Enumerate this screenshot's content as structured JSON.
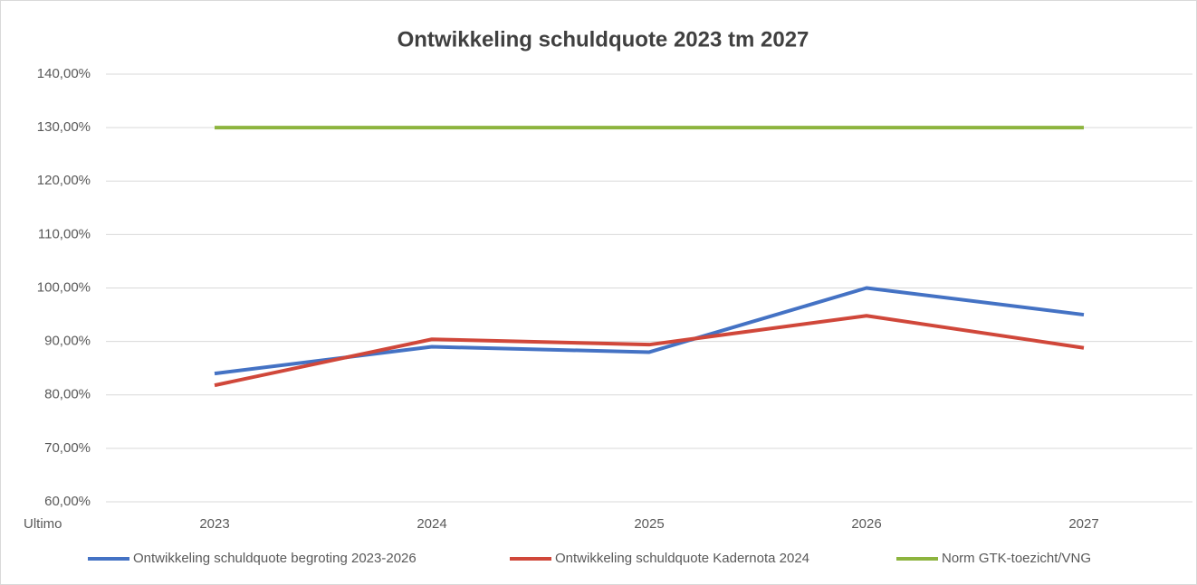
{
  "chart_data": {
    "type": "line",
    "title": "Ontwikkeling schuldquote 2023 tm 2027",
    "xlabel": "Ultimo",
    "categories": [
      "2023",
      "2024",
      "2025",
      "2026",
      "2027"
    ],
    "series": [
      {
        "name": "Ontwikkeling schuldquote begroting 2023-2026",
        "color": "#4472c4",
        "values": [
          84,
          89,
          88,
          100,
          95
        ]
      },
      {
        "name": "Ontwikkeling schuldquote Kadernota 2024",
        "color": "#d0473a",
        "values": [
          81.8,
          90.4,
          89.4,
          94.8,
          88.8
        ]
      },
      {
        "name": "Norm GTK-toezicht/VNG",
        "color": "#8db43e",
        "values": [
          130,
          130,
          130,
          130,
          130
        ]
      }
    ],
    "ylim": [
      60,
      140
    ],
    "yticks": [
      {
        "value": 60,
        "label": "60,00%"
      },
      {
        "value": 70,
        "label": "70,00%"
      },
      {
        "value": 80,
        "label": "80,00%"
      },
      {
        "value": 90,
        "label": "90,00%"
      },
      {
        "value": 100,
        "label": "100,00%"
      },
      {
        "value": 110,
        "label": "110,00%"
      },
      {
        "value": 120,
        "label": "120,00%"
      },
      {
        "value": 130,
        "label": "130,00%"
      },
      {
        "value": 140,
        "label": "140,00%"
      }
    ],
    "grid": true,
    "legend": "bottom"
  }
}
